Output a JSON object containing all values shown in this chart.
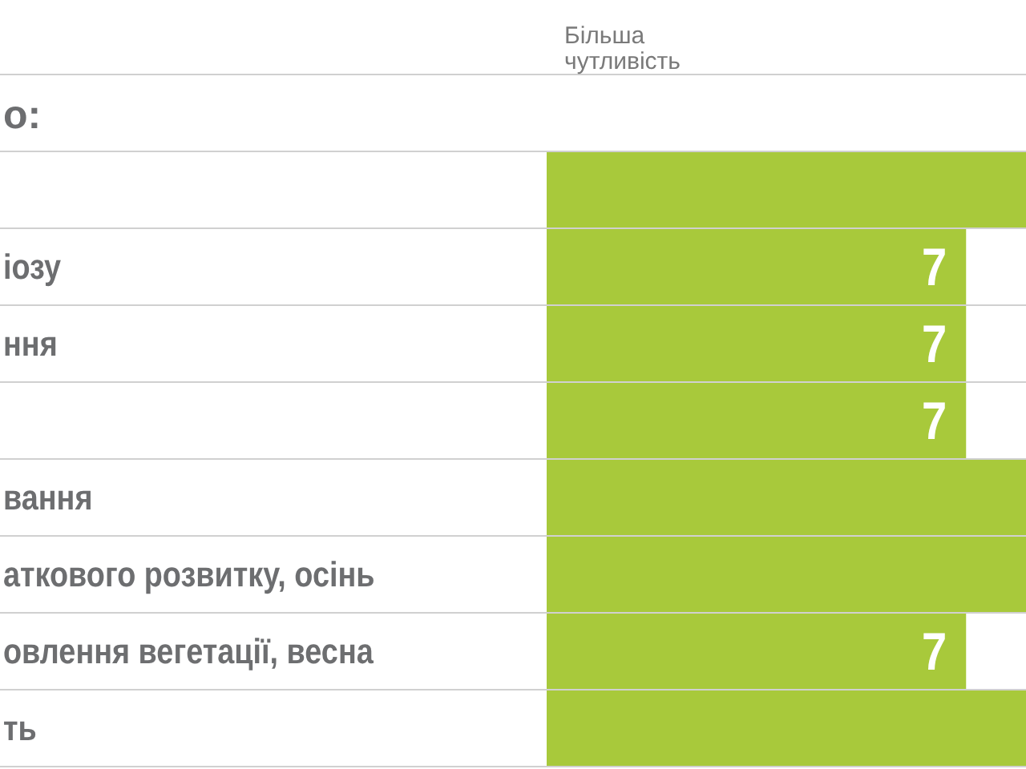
{
  "chart_data": {
    "type": "bar",
    "orientation": "horizontal",
    "title": "о:",
    "annotations": [
      "Більша чутливість"
    ],
    "categories": [
      null,
      "іозу",
      "ння",
      null,
      "вання",
      "аткового розвитку, осінь",
      "овлення вегетації, весна",
      "ть"
    ],
    "values": [
      8,
      7,
      7,
      7,
      8,
      8,
      7,
      8
    ],
    "value_labels": [
      null,
      "7",
      "7",
      "7",
      null,
      null,
      "7",
      null
    ],
    "color": "#a8c93b",
    "xlim": [
      0,
      8
    ],
    "grid": "y",
    "tick_labels": "y"
  }
}
